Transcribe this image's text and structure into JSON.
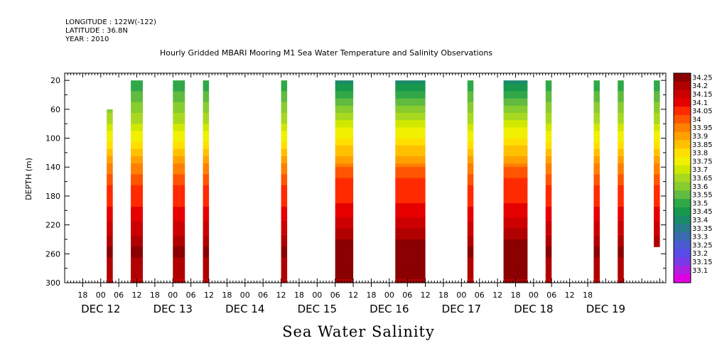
{
  "header": {
    "longitude": "LONGITUDE : 122W(-122)",
    "latitude": "LATITUDE : 36.8N",
    "year": "YEAR : 2010"
  },
  "chart_data": {
    "type": "heatmap",
    "title": "Hourly Gridded MBARI Mooring M1 Sea Water Temperature and Salinity Observations",
    "xlabel": "Sea Water Salinity",
    "ylabel": "DEPTH (m)",
    "y_ticks": [
      20,
      60,
      100,
      140,
      180,
      220,
      260,
      300
    ],
    "ylim": [
      300,
      10
    ],
    "x_start": "2010-12-11 12:00",
    "x_end": "2010-12-19 20:00",
    "x_hour_ticks": [
      "18",
      "00",
      "06",
      "12",
      "18",
      "00",
      "06",
      "12",
      "18",
      "00",
      "06",
      "12",
      "18",
      "00",
      "06",
      "12",
      "18",
      "00",
      "06",
      "12",
      "18",
      "00",
      "06",
      "12",
      "18",
      "00",
      "06",
      "12",
      "18"
    ],
    "x_day_labels": [
      "DEC 12",
      "DEC 13",
      "DEC 14",
      "DEC 15",
      "DEC 16",
      "DEC 17",
      "DEC 18",
      "DEC 19"
    ],
    "colorbar_labels": [
      "34.25",
      "34.2",
      "34.15",
      "34.1",
      "34.05",
      "34",
      "33.95",
      "33.9",
      "33.85",
      "33.8",
      "33.75",
      "33.7",
      "33.65",
      "33.6",
      "33.55",
      "33.5",
      "33.45",
      "33.4",
      "33.35",
      "33.3",
      "33.25",
      "33.2",
      "33.15",
      "33.1"
    ],
    "colorbar_colors": [
      "#8b0000",
      "#b00000",
      "#cc0000",
      "#e60000",
      "#ff2a00",
      "#ff5500",
      "#ff7f00",
      "#ffa000",
      "#ffc000",
      "#ffdf00",
      "#f0f000",
      "#d0e800",
      "#a8d820",
      "#88cc30",
      "#60bb40",
      "#30a848",
      "#18984c",
      "#1a8a6a",
      "#2a7a8e",
      "#3a6ab0",
      "#4a5ad0",
      "#5a4ae8",
      "#7a3ae8",
      "#b020e0",
      "#e000e0"
    ],
    "colorbar_range": [
      33.1,
      34.25
    ],
    "depth_profiles": {
      "normal": [
        [
          20,
          33.5
        ],
        [
          40,
          33.55
        ],
        [
          60,
          33.6
        ],
        [
          80,
          33.68
        ],
        [
          100,
          33.75
        ],
        [
          115,
          33.82
        ],
        [
          130,
          33.88
        ],
        [
          145,
          33.95
        ],
        [
          160,
          34.0
        ],
        [
          190,
          34.05
        ],
        [
          215,
          34.1
        ],
        [
          235,
          34.15
        ],
        [
          255,
          34.22
        ],
        [
          275,
          34.18
        ],
        [
          300,
          34.15
        ]
      ],
      "event": [
        [
          20,
          33.4
        ],
        [
          40,
          33.5
        ],
        [
          60,
          33.6
        ],
        [
          80,
          33.7
        ],
        [
          100,
          33.77
        ],
        [
          115,
          33.83
        ],
        [
          130,
          33.9
        ],
        [
          145,
          33.98
        ],
        [
          160,
          34.02
        ],
        [
          190,
          34.06
        ],
        [
          215,
          34.12
        ],
        [
          235,
          34.18
        ],
        [
          255,
          34.24
        ],
        [
          275,
          34.22
        ],
        [
          300,
          34.2
        ]
      ]
    },
    "columns": [
      {
        "start": "2010-12-12 02:00",
        "end": "2010-12-12 04:00",
        "top": 60,
        "bottom": 300,
        "profile": "normal"
      },
      {
        "start": "2010-12-12 10:00",
        "end": "2010-12-12 14:00",
        "top": 20,
        "bottom": 300,
        "profile": "normal"
      },
      {
        "start": "2010-12-13 00:00",
        "end": "2010-12-13 04:00",
        "top": 20,
        "bottom": 300,
        "profile": "normal"
      },
      {
        "start": "2010-12-13 10:00",
        "end": "2010-12-13 12:00",
        "top": 20,
        "bottom": 300,
        "profile": "normal"
      },
      {
        "start": "2010-12-14 12:00",
        "end": "2010-12-14 14:00",
        "top": 20,
        "bottom": 300,
        "profile": "normal"
      },
      {
        "start": "2010-12-15 06:00",
        "end": "2010-12-15 12:00",
        "top": 20,
        "bottom": 300,
        "profile": "event"
      },
      {
        "start": "2010-12-16 02:00",
        "end": "2010-12-16 12:00",
        "top": 20,
        "bottom": 300,
        "profile": "event"
      },
      {
        "start": "2010-12-17 02:00",
        "end": "2010-12-17 04:00",
        "top": 20,
        "bottom": 300,
        "profile": "normal"
      },
      {
        "start": "2010-12-17 14:00",
        "end": "2010-12-17 22:00",
        "top": 20,
        "bottom": 300,
        "profile": "event"
      },
      {
        "start": "2010-12-18 04:00",
        "end": "2010-12-18 06:00",
        "top": 20,
        "bottom": 300,
        "profile": "normal"
      },
      {
        "start": "2010-12-18 20:00",
        "end": "2010-12-18 22:00",
        "top": 20,
        "bottom": 300,
        "profile": "normal"
      },
      {
        "start": "2010-12-19 04:00",
        "end": "2010-12-19 06:00",
        "top": 20,
        "bottom": 300,
        "profile": "normal"
      },
      {
        "start": "2010-12-19 16:00",
        "end": "2010-12-19 18:00",
        "top": 20,
        "bottom": 250,
        "profile": "normal"
      }
    ]
  }
}
